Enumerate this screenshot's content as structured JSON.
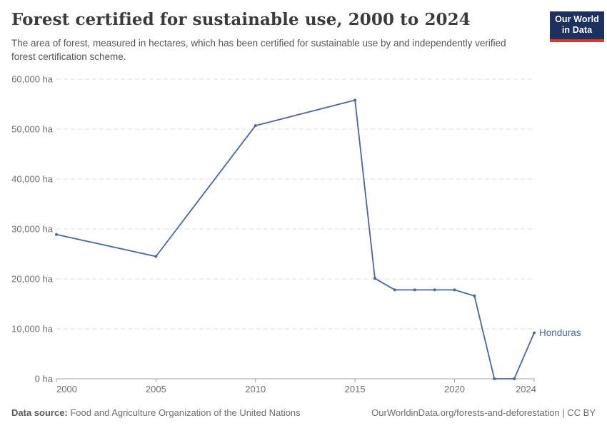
{
  "logo": {
    "line1": "Our World",
    "line2": "in Data",
    "bg_color": "#1d3160",
    "stripe_color": "#d93a2b"
  },
  "chart_data": {
    "type": "line",
    "title": "Forest certified for sustainable use, 2000 to 2024",
    "subtitle": "The area of forest, measured in hectares, which has been certified for sustainable use by and independently verified forest certification scheme.",
    "entity_label": "Honduras",
    "unit": "ha",
    "x": [
      2000,
      2005,
      2010,
      2015,
      2016,
      2017,
      2018,
      2019,
      2020,
      2021,
      2022,
      2023,
      2024
    ],
    "values": [
      28900,
      24500,
      50700,
      55800,
      20100,
      17800,
      17800,
      17800,
      17800,
      16600,
      0,
      0,
      9200
    ],
    "xlim": [
      2000,
      2024
    ],
    "ylim": [
      0,
      60000
    ],
    "yticks": [
      {
        "value": 0,
        "label": "0 ha"
      },
      {
        "value": 10000,
        "label": "10,000 ha"
      },
      {
        "value": 20000,
        "label": "20,000 ha"
      },
      {
        "value": 30000,
        "label": "30,000 ha"
      },
      {
        "value": 40000,
        "label": "40,000 ha"
      },
      {
        "value": 50000,
        "label": "50,000 ha"
      },
      {
        "value": 60000,
        "label": "60,000 ha"
      }
    ],
    "xticks": [
      {
        "value": 2000,
        "label": "2000"
      },
      {
        "value": 2005,
        "label": "2005"
      },
      {
        "value": 2010,
        "label": "2010"
      },
      {
        "value": 2015,
        "label": "2015"
      },
      {
        "value": 2020,
        "label": "2020"
      },
      {
        "value": 2024,
        "label": "2024"
      }
    ],
    "grid": "dashed",
    "legend_position": "end-of-line",
    "line_color": "#4766a6",
    "grid_color": "#dcdcdc",
    "axis_color": "#a3a3a3",
    "tick_label_color": "#6e6e6e"
  },
  "footer": {
    "source_label": "Data source:",
    "source_text": " Food and Agriculture Organization of the United Nations",
    "credit": "OurWorldinData.org/forests-and-deforestation | CC BY"
  }
}
